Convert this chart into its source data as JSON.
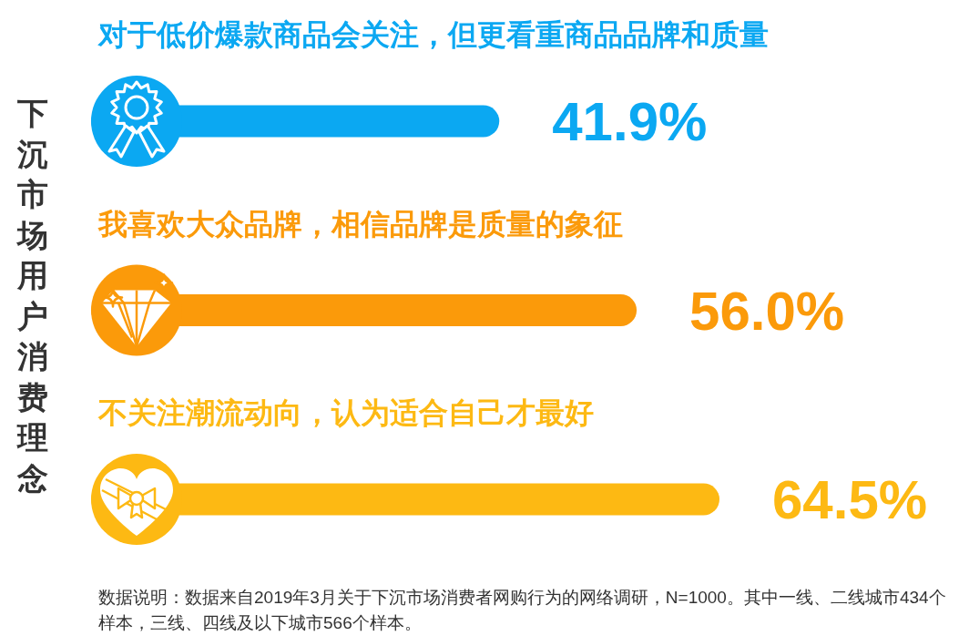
{
  "chart_data": {
    "type": "bar",
    "orientation": "horizontal",
    "ylabel": "下沉市场用户消费理念",
    "categories": [
      "对于低价爆款商品会关注，但更看重商品品牌和质量",
      "我喜欢大众品牌，相信品牌是质量的象征",
      "不关注潮流动向，认为适合自己才最好"
    ],
    "values": [
      41.9,
      56.0,
      64.5
    ],
    "value_labels": [
      "41.9%",
      "56.0%",
      "64.5%"
    ],
    "colors": [
      "#0ba8f2",
      "#fb9a0a",
      "#fdb913"
    ],
    "annotations": [
      "数据说明：数据来自2019年3月关于下沉市场消费者网购行为的网络调研，N=1000。其中一线、二线城市434个样本，三线、四线及以下城市566个样本。"
    ]
  }
}
